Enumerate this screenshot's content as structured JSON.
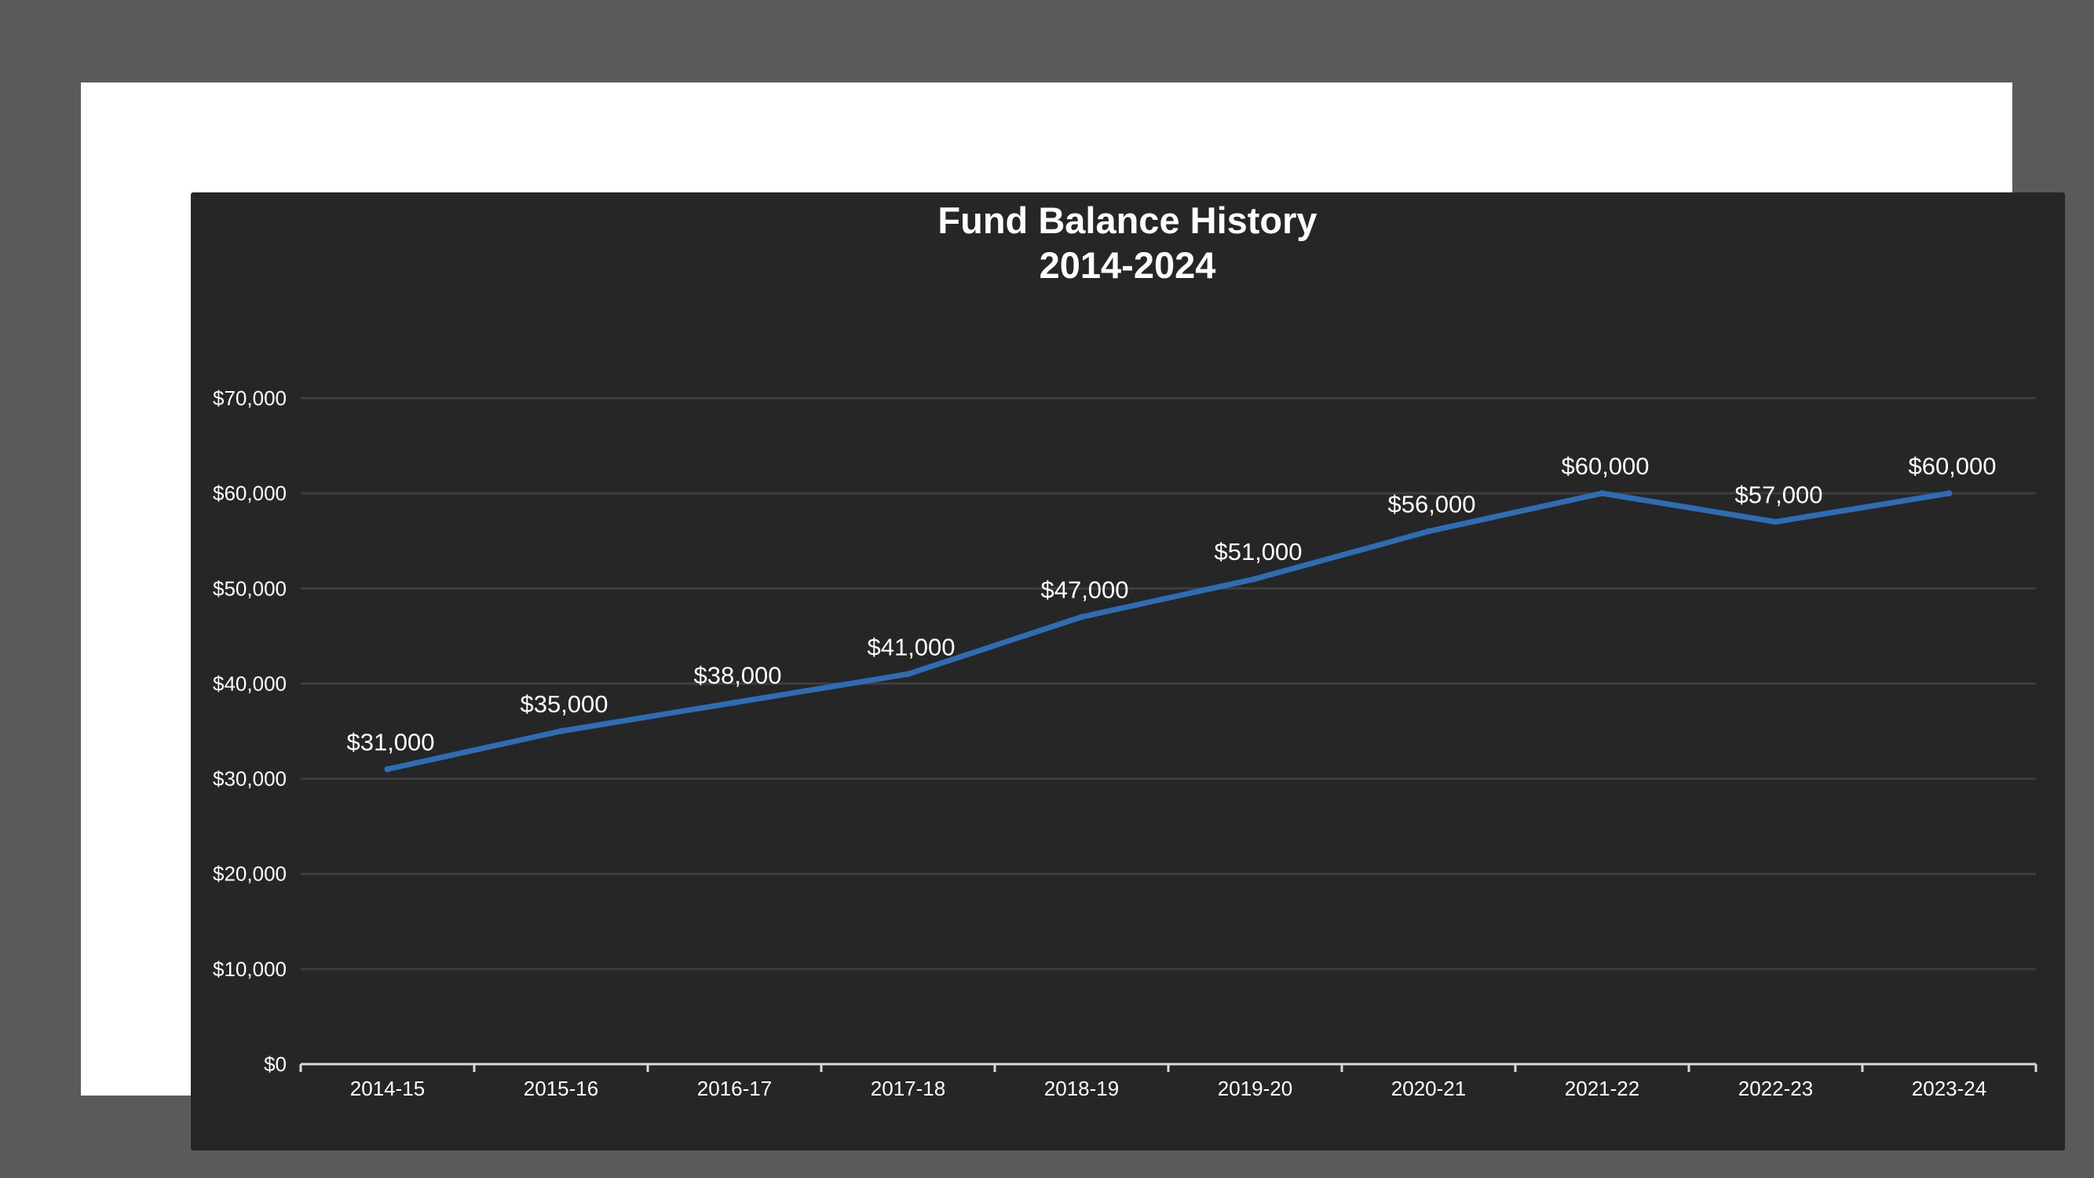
{
  "chart_data": {
    "type": "line",
    "title_lines": [
      "Fund Balance History",
      "2014-2024"
    ],
    "xlabel": "",
    "ylabel": "",
    "categories": [
      "2014-15",
      "2015-16",
      "2016-17",
      "2017-18",
      "2018-19",
      "2019-20",
      "2020-21",
      "2021-22",
      "2022-23",
      "2023-24"
    ],
    "series": [
      {
        "values": [
          31000,
          35000,
          38000,
          41000,
          47000,
          51000,
          56000,
          60000,
          57000,
          60000
        ],
        "data_labels": [
          "$31,000",
          "$35,000",
          "$38,000",
          "$41,000",
          "$47,000",
          "$51,000",
          "$56,000",
          "$60,000",
          "$57,000",
          "$60,000"
        ],
        "color": "#2e6db4"
      }
    ],
    "ylim": [
      0,
      70000
    ],
    "y_ticks": [
      0,
      10000,
      20000,
      30000,
      40000,
      50000,
      60000,
      70000
    ],
    "y_tick_labels": [
      "$0",
      "$10,000",
      "$20,000",
      "$30,000",
      "$40,000",
      "$50,000",
      "$60,000",
      "$70,000"
    ],
    "grid": true,
    "legend": "none",
    "colors": {
      "background": "#262626",
      "frame": "#ffffff",
      "outer": "#5a5a5a",
      "gridline": "#3e3e3e",
      "axis": "#d9d9d9",
      "text": "#ffffff",
      "line": "#2e6db4"
    }
  }
}
